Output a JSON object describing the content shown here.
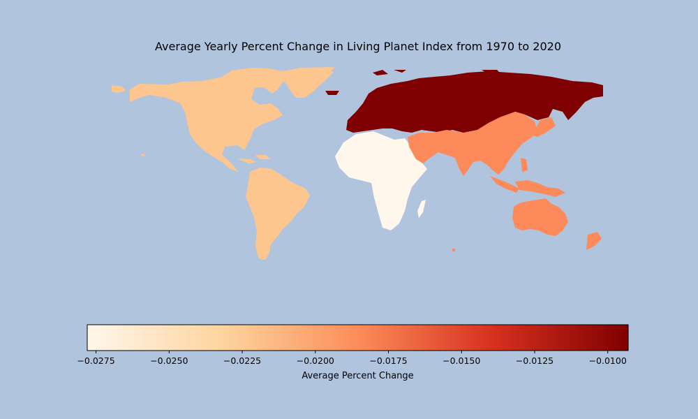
{
  "title": "Average Yearly Percent Change in Living Planet Index from 1970 to 2020",
  "colormap": "OrRd",
  "colors": {
    "background": "#b0c4de",
    "ramp": [
      "#fff7ec",
      "#fdd49e",
      "#fc8d59",
      "#d7301f",
      "#7f0000"
    ]
  },
  "chart_data": {
    "type": "choropleth",
    "title": "Average Yearly Percent Change in Living Planet Index from 1970 to 2020",
    "regions": [
      {
        "name": "North America",
        "value": -0.0232,
        "color": "#fdc68f"
      },
      {
        "name": "Latin America and Caribbean",
        "value": -0.0232,
        "color": "#fdc68f"
      },
      {
        "name": "Africa",
        "value": -0.0278,
        "color": "#fff7ec"
      },
      {
        "name": "Europe and Central Asia",
        "value": -0.0093,
        "color": "#7f0000"
      },
      {
        "name": "Asia and Pacific",
        "value": -0.0182,
        "color": "#fc8a5a"
      }
    ],
    "colorbar": {
      "label": "Average Percent Change",
      "vmin": -0.0278,
      "vmax": -0.0093,
      "ticks": [
        "−0.0275",
        "−0.0250",
        "−0.0225",
        "−0.0200",
        "−0.0175",
        "−0.0150",
        "−0.0125",
        "−0.0100"
      ],
      "tick_values": [
        -0.0275,
        -0.025,
        -0.0225,
        -0.02,
        -0.0175,
        -0.015,
        -0.0125,
        -0.01
      ]
    }
  }
}
